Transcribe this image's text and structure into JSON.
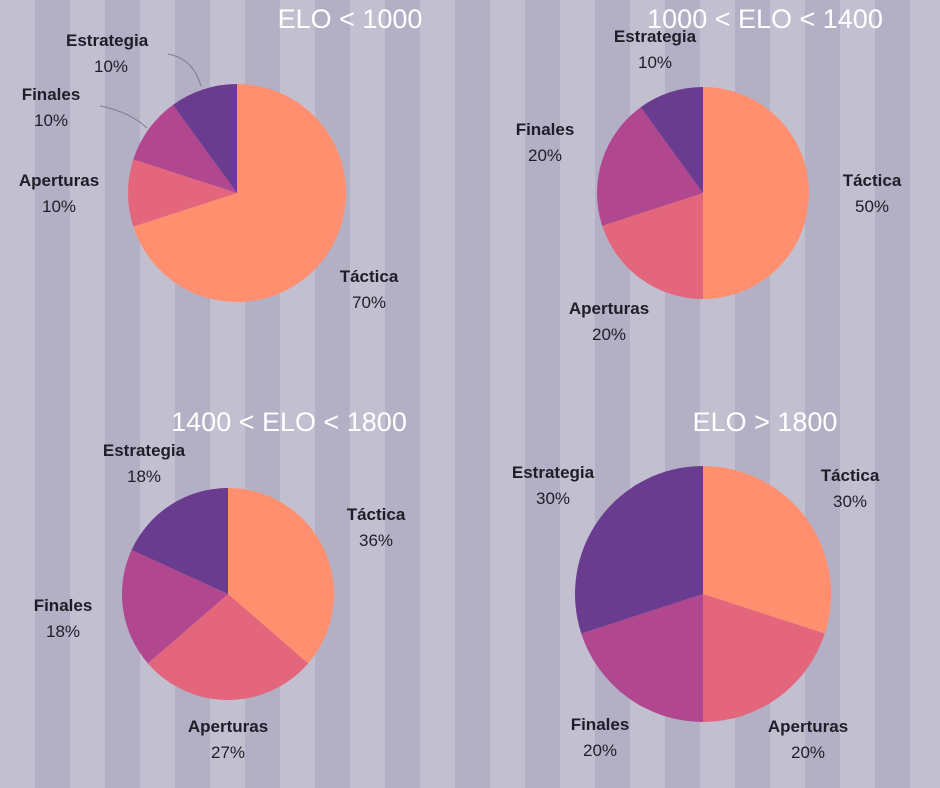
{
  "chart_data": [
    {
      "type": "pie",
      "title": "ELO < 1000",
      "slices": [
        {
          "label": "Táctica",
          "value": 70,
          "display": "70%",
          "color": "#ff8f6e"
        },
        {
          "label": "Aperturas",
          "value": 10,
          "display": "10%",
          "color": "#e3667c"
        },
        {
          "label": "Finales",
          "value": 10,
          "display": "10%",
          "color": "#b1478e"
        },
        {
          "label": "Estrategia",
          "value": 10,
          "display": "10%",
          "color": "#6a3c8f"
        }
      ]
    },
    {
      "type": "pie",
      "title": "1000 < ELO < 1400",
      "slices": [
        {
          "label": "Táctica",
          "value": 50,
          "display": "50%",
          "color": "#ff8f6e"
        },
        {
          "label": "Aperturas",
          "value": 20,
          "display": "20%",
          "color": "#e3667c"
        },
        {
          "label": "Finales",
          "value": 20,
          "display": "20%",
          "color": "#b1478e"
        },
        {
          "label": "Estrategia",
          "value": 10,
          "display": "10%",
          "color": "#6a3c8f"
        }
      ]
    },
    {
      "type": "pie",
      "title": "1400 < ELO < 1800",
      "slices": [
        {
          "label": "Táctica",
          "value": 36,
          "display": "36%",
          "color": "#ff8f6e"
        },
        {
          "label": "Aperturas",
          "value": 27,
          "display": "27%",
          "color": "#e3667c"
        },
        {
          "label": "Finales",
          "value": 18,
          "display": "18%",
          "color": "#b1478e"
        },
        {
          "label": "Estrategia",
          "value": 18,
          "display": "18%",
          "color": "#6a3c8f"
        }
      ]
    },
    {
      "type": "pie",
      "title": "ELO > 1800",
      "slices": [
        {
          "label": "Táctica",
          "value": 30,
          "display": "30%",
          "color": "#ff8f6e"
        },
        {
          "label": "Aperturas",
          "value": 20,
          "display": "20%",
          "color": "#e3667c"
        },
        {
          "label": "Finales",
          "value": 20,
          "display": "20%",
          "color": "#b1478e"
        },
        {
          "label": "Estrategia",
          "value": 30,
          "display": "30%",
          "color": "#6a3c8f"
        }
      ]
    }
  ]
}
